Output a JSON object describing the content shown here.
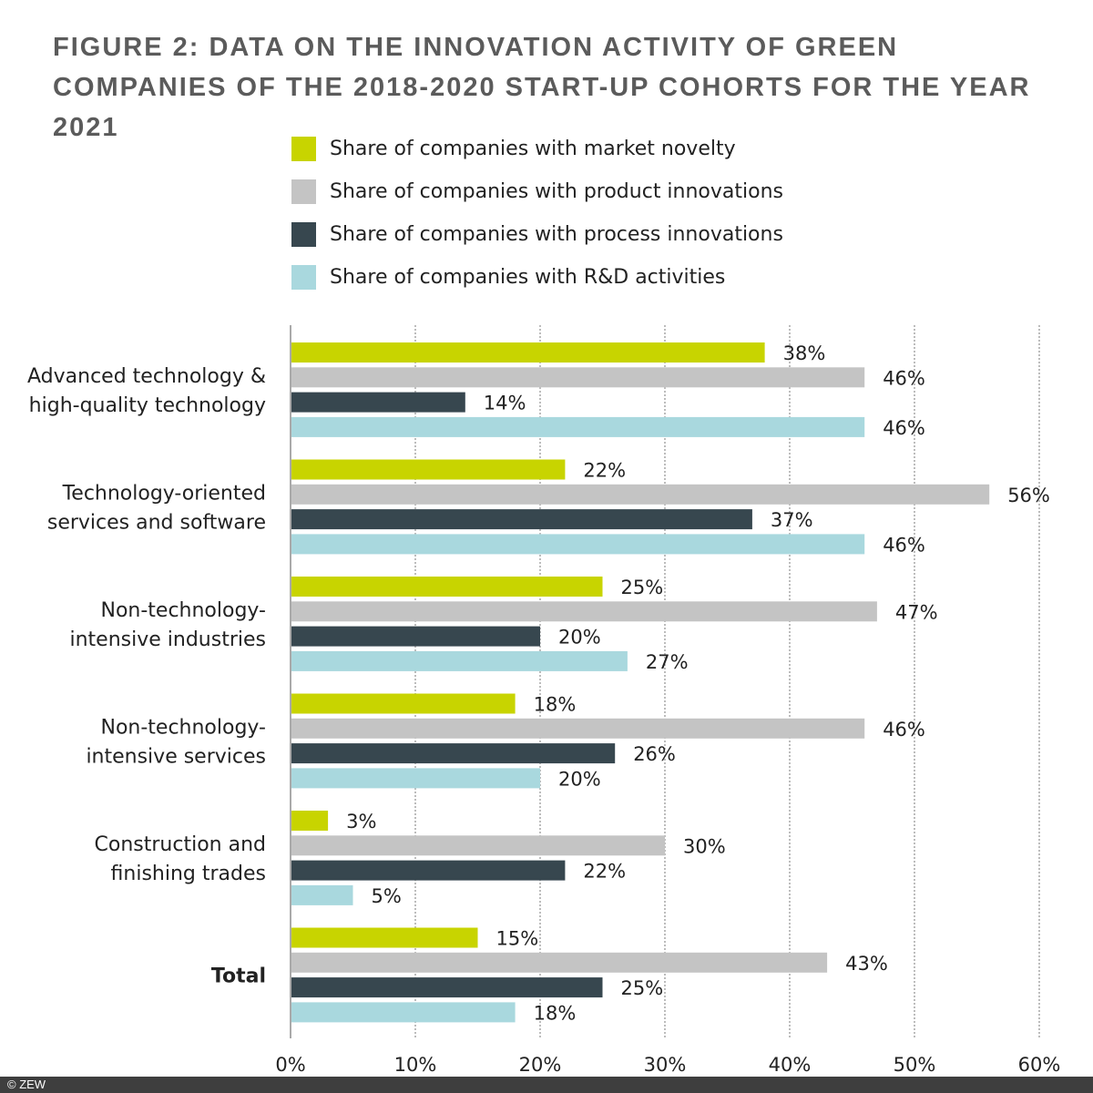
{
  "title": "FIGURE 2: DATA ON THE INNOVATION ACTIVITY OF GREEN COMPANIES OF THE 2018-2020 START-UP COHORTS FOR THE YEAR 2021",
  "footer": "© ZEW",
  "chart_data": {
    "type": "bar",
    "orientation": "horizontal",
    "title": "FIGURE 2: DATA ON THE INNOVATION ACTIVITY OF GREEN COMPANIES OF THE 2018-2020 START-UP COHORTS FOR THE YEAR 2021",
    "categories": [
      [
        "Advanced technology &",
        "high-quality technology"
      ],
      [
        "Technology-oriented",
        "services and software"
      ],
      [
        "Non-technology-",
        "intensive industries"
      ],
      [
        "Non-technology-",
        "intensive services"
      ],
      [
        "Construction and",
        "finishing trades"
      ],
      [
        "Total"
      ]
    ],
    "bold_categories": [
      5
    ],
    "series": [
      {
        "name": "Share of companies with market novelty",
        "color": "#c8d400",
        "values": [
          38,
          22,
          25,
          18,
          3,
          15
        ]
      },
      {
        "name": "Share of companies with product innovations",
        "color": "#c4c4c4",
        "values": [
          46,
          56,
          47,
          46,
          30,
          43
        ]
      },
      {
        "name": "Share of companies with process innovations",
        "color": "#37474f",
        "values": [
          14,
          37,
          20,
          26,
          22,
          25
        ]
      },
      {
        "name": "Share of companies with R&D activities",
        "color": "#a9d8de",
        "values": [
          46,
          46,
          27,
          20,
          5,
          18
        ]
      }
    ],
    "xlim": [
      0,
      60
    ],
    "xticks": [
      "0%",
      "10%",
      "20%",
      "30%",
      "40%",
      "50%",
      "60%"
    ],
    "value_suffix": "%",
    "grid": "vertical dotted",
    "legend": "top"
  }
}
